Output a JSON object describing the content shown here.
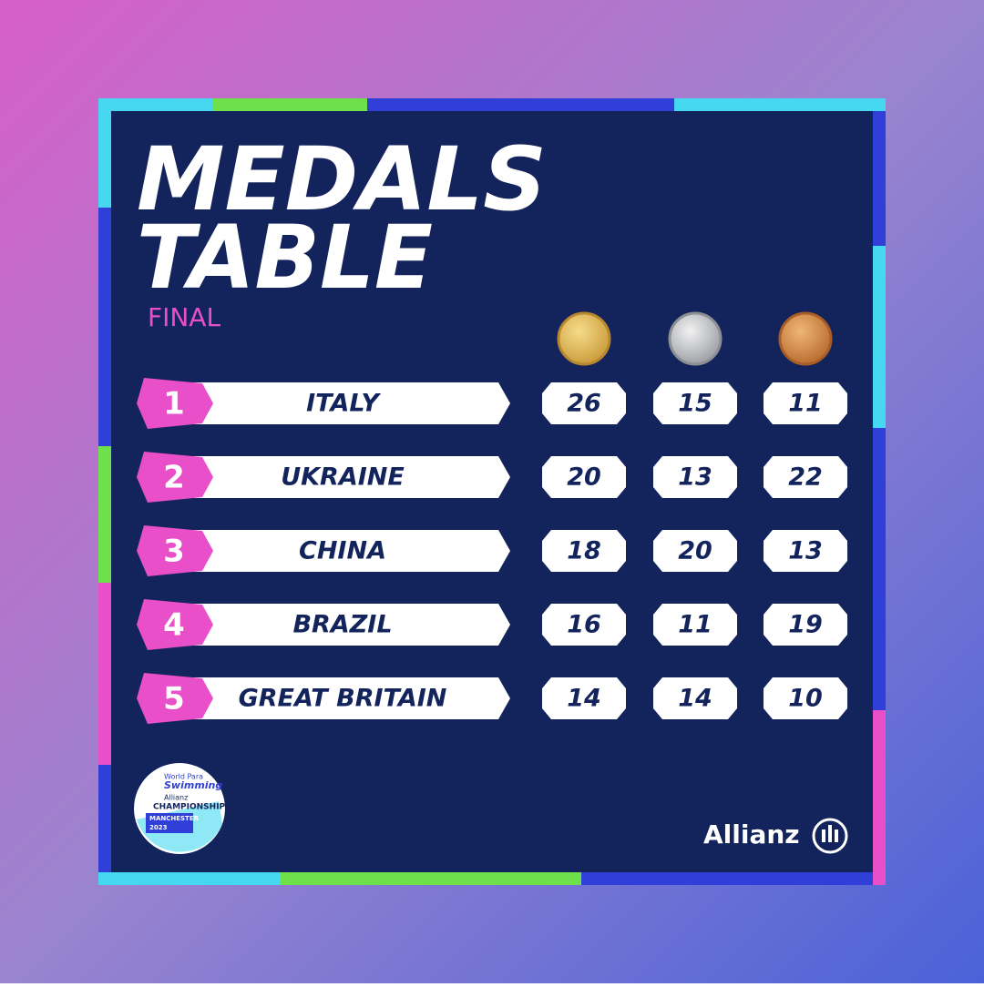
{
  "header": {
    "title_lines": [
      "MEDALS",
      "TABLE"
    ],
    "subtitle": "FINAL"
  },
  "table": {
    "rows": [
      [
        1,
        "ITALY",
        26,
        15,
        11
      ],
      [
        2,
        "UKRAINE",
        20,
        13,
        22
      ],
      [
        3,
        "CHINA",
        18,
        20,
        13
      ],
      [
        4,
        "BRAZIL",
        16,
        11,
        19
      ],
      [
        5,
        "GREAT BRITAIN",
        14,
        14,
        10
      ]
    ]
  },
  "logo": {
    "lines": [
      "World Para",
      "Swimming",
      "Allianz",
      "CHAMPIONSHIPS",
      "MANCHESTER",
      "2023"
    ]
  },
  "sponsor": "Allianz"
}
